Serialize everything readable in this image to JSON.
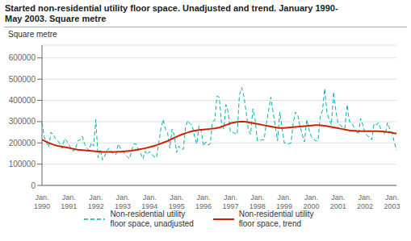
{
  "chart_data": {
    "type": "line",
    "title": "Started non-residential utility floor space. Unadjusted and trend. January 1990-\nMay 2003. Square metre",
    "ylabel": "Square metre",
    "categories": [
      "Jan.\n1990",
      null,
      null,
      null,
      null,
      null,
      null,
      null,
      null,
      null,
      null,
      null,
      "Jan.\n1991",
      null,
      null,
      null,
      null,
      null,
      null,
      null,
      null,
      null,
      null,
      null,
      "Jan.\n1992",
      null,
      null,
      null,
      null,
      null,
      null,
      null,
      null,
      null,
      null,
      null,
      "Jan.\n1993",
      null,
      null,
      null,
      null,
      null,
      null,
      null,
      null,
      null,
      null,
      null,
      "Jan.\n1994",
      null,
      null,
      null,
      null,
      null,
      null,
      null,
      null,
      null,
      null,
      null,
      "Jan.\n1995",
      null,
      null,
      null,
      null,
      null,
      null,
      null,
      null,
      null,
      null,
      null,
      "Jan.\n1996",
      null,
      null,
      null,
      null,
      null,
      null,
      null,
      null,
      null,
      null,
      null,
      "Jan.\n1997",
      null,
      null,
      null,
      null,
      null,
      null,
      null,
      null,
      null,
      null,
      null,
      "Jan.\n1998",
      null,
      null,
      null,
      null,
      null,
      null,
      null,
      null,
      null,
      null,
      null,
      "Jan.\n1999",
      null,
      null,
      null,
      null,
      null,
      null,
      null,
      null,
      null,
      null,
      null,
      "Jan.\n2000",
      null,
      null,
      null,
      null,
      null,
      null,
      null,
      null,
      null,
      null,
      null,
      "Jan.\n2001",
      null,
      null,
      null,
      null,
      null,
      null,
      null,
      null,
      null,
      null,
      null,
      "Jan.\n2002",
      null,
      null,
      null,
      null,
      null,
      null,
      null,
      null,
      null,
      null,
      null,
      "Jan.\n2003",
      null,
      null
    ],
    "series": [
      {
        "name": "Non-residential utility\nfloor space, unadjusted",
        "color": "#00b0b0",
        "line_style": "dashed",
        "values": [
          295000,
          230000,
          200000,
          180000,
          250000,
          240000,
          220000,
          210000,
          195000,
          175000,
          220000,
          210000,
          190000,
          175000,
          160000,
          175000,
          210000,
          215000,
          230000,
          195000,
          175000,
          165000,
          200000,
          185000,
          310000,
          130000,
          170000,
          120000,
          140000,
          165000,
          175000,
          155000,
          150000,
          145000,
          195000,
          175000,
          165000,
          145000,
          135000,
          125000,
          165000,
          195000,
          195000,
          165000,
          150000,
          125000,
          160000,
          145000,
          160000,
          145000,
          135000,
          130000,
          195000,
          265000,
          310000,
          265000,
          245000,
          175000,
          265000,
          235000,
          155000,
          185000,
          170000,
          170000,
          275000,
          305000,
          290000,
          280000,
          230000,
          195000,
          280000,
          255000,
          185000,
          205000,
          190000,
          195000,
          300000,
          305000,
          420000,
          415000,
          295000,
          265000,
          380000,
          345000,
          250000,
          250000,
          245000,
          240000,
          425000,
          460000,
          420000,
          345000,
          260000,
          240000,
          360000,
          310000,
          210000,
          210000,
          215000,
          215000,
          290000,
          350000,
          415000,
          345000,
          280000,
          210000,
          345000,
          270000,
          200000,
          200000,
          195000,
          200000,
          295000,
          345000,
          330000,
          280000,
          240000,
          205000,
          310000,
          265000,
          230000,
          220000,
          210000,
          210000,
          325000,
          350000,
          455000,
          345000,
          310000,
          285000,
          440000,
          350000,
          290000,
          285000,
          270000,
          270000,
          380000,
          300000,
          295000,
          275000,
          255000,
          240000,
          315000,
          285000,
          245000,
          235000,
          225000,
          215000,
          290000,
          285000,
          295000,
          265000,
          255000,
          240000,
          295000,
          265000,
          250000,
          205000,
          165000
        ]
      },
      {
        "name": "Non-residential utility\nfloor space, trend",
        "color": "#cc2200",
        "line_style": "solid",
        "values": [
          215000,
          210000,
          205000,
          200000,
          196000,
          192000,
          189000,
          186000,
          184000,
          182000,
          180000,
          178000,
          176000,
          174000,
          172000,
          170000,
          168000,
          167000,
          166000,
          165000,
          164000,
          163000,
          162000,
          161000,
          160000,
          159000,
          158000,
          157000,
          157000,
          157000,
          157000,
          157000,
          157000,
          157000,
          158000,
          158000,
          159000,
          160000,
          161000,
          162000,
          163000,
          165000,
          167000,
          169000,
          171000,
          173000,
          175000,
          177000,
          180000,
          183000,
          186000,
          189000,
          193000,
          197000,
          201000,
          205000,
          209000,
          214000,
          219000,
          224000,
          229000,
          234000,
          238000,
          242000,
          246000,
          249000,
          252000,
          255000,
          257000,
          259000,
          261000,
          262000,
          263000,
          264000,
          265000,
          266000,
          267000,
          268000,
          270000,
          272000,
          276000,
          280000,
          284000,
          288000,
          292000,
          295000,
          297000,
          299000,
          300000,
          301000,
          300000,
          299000,
          297000,
          295000,
          293000,
          291000,
          289000,
          287000,
          285000,
          283000,
          281000,
          279000,
          277000,
          275000,
          273000,
          271000,
          270000,
          270000,
          270000,
          271000,
          272000,
          273000,
          274000,
          275000,
          276000,
          277000,
          278000,
          279000,
          280000,
          281000,
          282000,
          283000,
          284000,
          284000,
          283000,
          282000,
          281000,
          279000,
          277000,
          275000,
          273000,
          271000,
          269000,
          267000,
          265000,
          263000,
          261000,
          259000,
          258000,
          257000,
          256000,
          255000,
          255000,
          255000,
          255000,
          255000,
          255000,
          255000,
          255000,
          255000,
          255000,
          254000,
          253000,
          252000,
          251000,
          250000,
          248000,
          246000,
          244000
        ]
      }
    ],
    "ylim": [
      0,
      660000
    ],
    "yticks": [
      0,
      100000,
      200000,
      300000,
      400000,
      500000,
      600000
    ],
    "grid": true,
    "legend": "bottom"
  }
}
